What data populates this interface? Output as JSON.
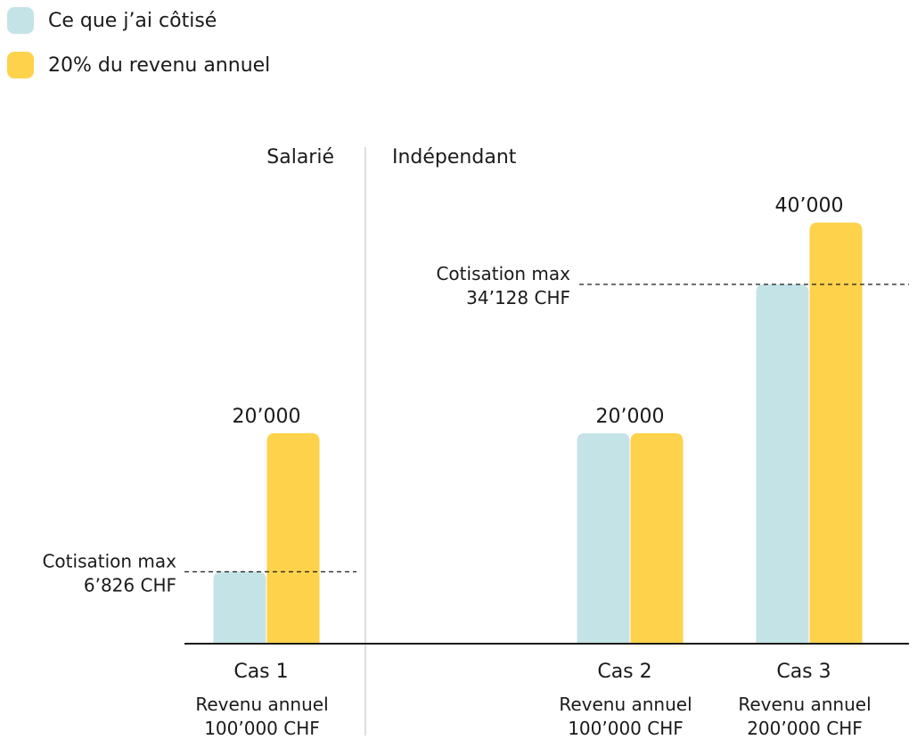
{
  "colors": {
    "contributed": "#c4e3e6",
    "income20": "#ffd24b",
    "axis": "#1a1a1a",
    "divider": "#bdbdbd"
  },
  "legend": [
    {
      "label": "Ce que j’ai côtisé",
      "color": "#c4e3e6"
    },
    {
      "label": "20% du revenu annuel",
      "color": "#ffd24b"
    }
  ],
  "chart_data": {
    "type": "bar",
    "grid": false,
    "legend_position": "top-left",
    "ylim": [
      0,
      47000
    ],
    "series": [
      {
        "name": "Ce que j’ai côtisé",
        "values": [
          6826,
          20000,
          34128
        ]
      },
      {
        "name": "20% du revenu annuel",
        "values": [
          20000,
          20000,
          40000
        ]
      }
    ],
    "sections": [
      {
        "label": "Salarié"
      },
      {
        "label": "Indépendant"
      }
    ],
    "categories": [
      {
        "name": "Cas 1",
        "income_label": "Revenu annuel",
        "income_value": "100’000 CHF",
        "value_label": "20’000"
      },
      {
        "name": "Cas 2",
        "income_label": "Revenu annuel",
        "income_value": "100’000 CHF",
        "value_label": "20’000"
      },
      {
        "name": "Cas 3",
        "income_label": "Revenu annuel",
        "income_value": "200’000 CHF",
        "value_label": "40’000"
      }
    ],
    "annotations": [
      {
        "category": 0,
        "value": 6826,
        "line1": "Cotisation max",
        "line2": "6’826 CHF"
      },
      {
        "category": 2,
        "value": 34128,
        "line1": "Cotisation max",
        "line2": "34’128 CHF"
      }
    ]
  }
}
